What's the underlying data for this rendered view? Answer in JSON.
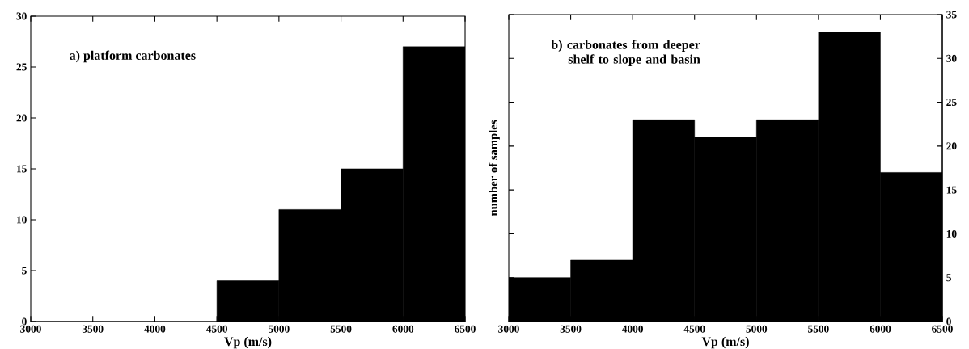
{
  "chart_data": [
    {
      "type": "histogram",
      "title": "a)   platform carbonates",
      "xlabel": "Vp  (m/s)",
      "bins": [
        3000,
        3500,
        4000,
        4500,
        5000,
        5500,
        6000,
        6500
      ],
      "values": [
        0,
        0,
        0,
        4,
        11,
        15,
        27
      ],
      "color": "#000000",
      "xlim": [
        3000,
        6500
      ],
      "xticks": [
        3000,
        3500,
        4000,
        4500,
        5000,
        5500,
        6000,
        6500
      ],
      "ylim": [
        0,
        30
      ],
      "yticks": [
        0,
        5,
        10,
        15,
        20,
        25,
        30
      ]
    },
    {
      "type": "histogram",
      "title": "b)   carbonates from deeper shelf to slope and basin",
      "xlabel": "Vp  (m/s)",
      "ylabel": "number of samples",
      "bins": [
        3000,
        3500,
        4000,
        4500,
        5000,
        5500,
        6000,
        6500
      ],
      "series": [
        {
          "color": "#000000",
          "values": [
            5,
            7,
            23,
            21,
            23,
            33,
            17
          ],
          "axis": "y2"
        }
      ],
      "xlim": [
        3000,
        6500
      ],
      "xticks": [
        3000,
        3500,
        4000,
        4500,
        5000,
        5500,
        6000,
        6500
      ],
      "y2lim": [
        0,
        35
      ],
      "y2ticks": [
        0,
        5,
        10,
        15,
        20,
        25,
        30,
        35
      ]
    }
  ]
}
